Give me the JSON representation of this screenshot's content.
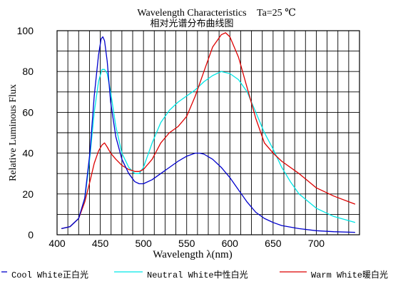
{
  "chart_data": {
    "type": "line",
    "title": "Wavelength Characteristics",
    "subtitle": "相对光谱分布曲线图",
    "condition": "Ta=25 ℃",
    "xlabel": "Wavelength λ(nm)",
    "ylabel": "Relative Luminous Flux",
    "xlim": [
      400,
      750
    ],
    "ylim": [
      0,
      100
    ],
    "xticks": [
      400,
      450,
      500,
      550,
      600,
      650,
      700
    ],
    "yticks": [
      0,
      20,
      40,
      60,
      80,
      100
    ],
    "grid": true,
    "legend_position": "bottom",
    "series": [
      {
        "name": "Cool White正白光",
        "color": "#0000cc",
        "x": [
          405,
          415,
          425,
          432,
          438,
          443,
          448,
          451,
          453,
          455,
          458,
          462,
          468,
          475,
          483,
          490,
          495,
          500,
          510,
          520,
          530,
          540,
          550,
          560,
          565,
          570,
          580,
          590,
          600,
          610,
          620,
          630,
          640,
          650,
          660,
          680,
          700,
          720,
          745
        ],
        "y": [
          3,
          4,
          8,
          18,
          40,
          68,
          88,
          96,
          97,
          95,
          85,
          65,
          48,
          37,
          30,
          26,
          25,
          25,
          27,
          30,
          33,
          36,
          38.5,
          40,
          40,
          39.5,
          37,
          33,
          28,
          22,
          16,
          11,
          8,
          6,
          4.5,
          3,
          2,
          1.5,
          1.2
        ]
      },
      {
        "name": "Neutral White中性白光",
        "color": "#00e6e6",
        "x": [
          405,
          415,
          425,
          432,
          438,
          443,
          448,
          452,
          455,
          458,
          462,
          468,
          475,
          483,
          490,
          495,
          500,
          510,
          520,
          530,
          540,
          550,
          560,
          570,
          580,
          590,
          600,
          610,
          620,
          630,
          640,
          650,
          660,
          670,
          680,
          700,
          720,
          745
        ],
        "y": [
          3,
          4,
          8,
          17,
          38,
          60,
          75,
          81,
          81,
          79,
          70,
          53,
          40,
          33,
          30,
          30,
          33,
          45,
          55,
          61,
          65,
          68,
          71,
          75,
          78,
          80,
          79,
          76,
          70,
          60,
          50,
          42,
          33,
          26,
          20,
          13,
          9,
          6
        ]
      },
      {
        "name": "Warm White暖白光",
        "color": "#dd0000",
        "x": [
          405,
          415,
          425,
          432,
          438,
          443,
          448,
          452,
          455,
          458,
          462,
          468,
          475,
          483,
          490,
          495,
          500,
          510,
          520,
          530,
          540,
          550,
          560,
          570,
          580,
          590,
          595,
          600,
          610,
          620,
          630,
          640,
          650,
          660,
          680,
          700,
          720,
          745
        ],
        "y": [
          3,
          4,
          8,
          16,
          26,
          35,
          41,
          44,
          45,
          43,
          40,
          37,
          34,
          32,
          31,
          31,
          32,
          37,
          45,
          50,
          53,
          58,
          68,
          80,
          92,
          98,
          99,
          97,
          87,
          72,
          57,
          45,
          40,
          36,
          30,
          23,
          19,
          15
        ]
      }
    ]
  }
}
